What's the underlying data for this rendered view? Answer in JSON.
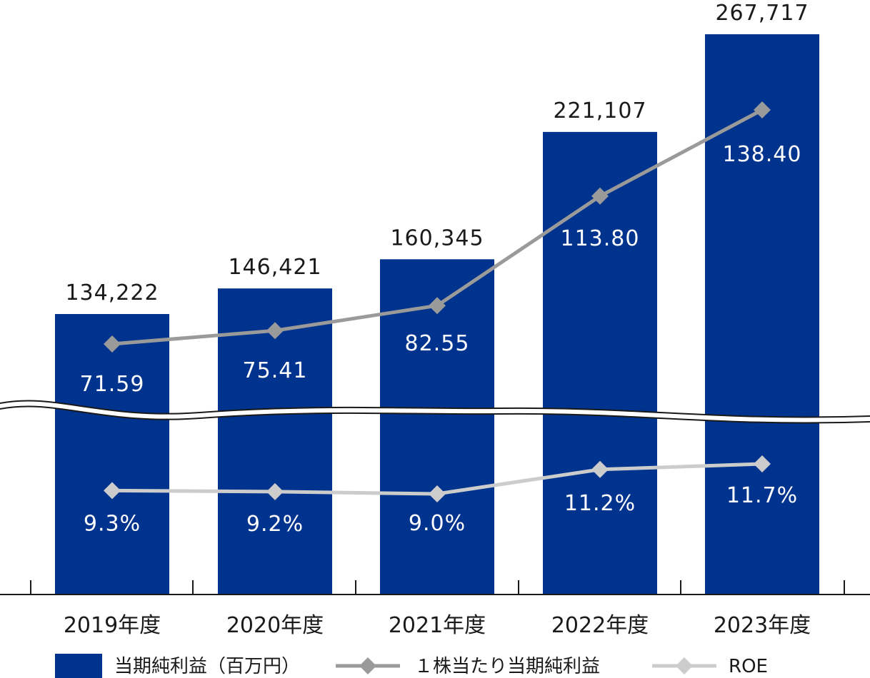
{
  "chart_data": {
    "type": "bar",
    "categories": [
      "2019年度",
      "2020年度",
      "2021年度",
      "2022年度",
      "2023年度"
    ],
    "series": [
      {
        "name": "当期純利益（百万円）",
        "kind": "bar",
        "color": "#00338d",
        "values": [
          134222,
          146421,
          160345,
          221107,
          267717
        ],
        "labels": [
          "134,222",
          "146,421",
          "160,345",
          "221,107",
          "267,717"
        ]
      },
      {
        "name": "１株当たり当期純利益",
        "kind": "line",
        "color": "#9a9a9a",
        "values": [
          71.59,
          75.41,
          82.55,
          113.8,
          138.4
        ],
        "labels": [
          "71.59",
          "75.41",
          "82.55",
          "113.80",
          "138.40"
        ]
      },
      {
        "name": "ROE",
        "kind": "line",
        "color": "#cccccc",
        "values": [
          9.3,
          9.2,
          9.0,
          11.2,
          11.7
        ],
        "labels": [
          "9.3%",
          "9.2%",
          "9.0%",
          "11.2%",
          "11.7%"
        ]
      }
    ],
    "axis_break": true,
    "grid": false,
    "legend_position": "bottom"
  }
}
